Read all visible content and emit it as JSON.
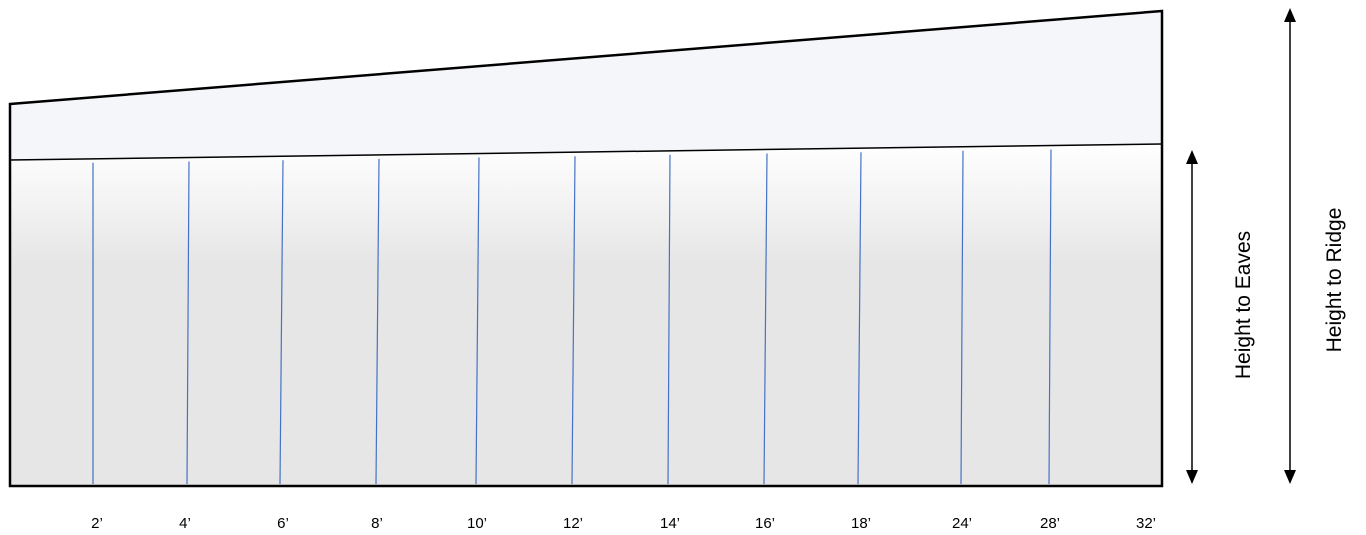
{
  "diagram": {
    "ticks": [
      "2’",
      "4’",
      "6’",
      "8’",
      "10’",
      "12’",
      "14’",
      "16’",
      "18’",
      "24’",
      "28’",
      "32’"
    ],
    "height_to_eaves_label": "Height to Eaves",
    "height_to_ridge_label": "Height to Ridge",
    "colors": {
      "wall_top": "#ffffff",
      "wall_bottom": "#e6e6e6",
      "roof_fill": "#f5f6fa",
      "outline": "#000000",
      "post_line": "#4472c4"
    }
  }
}
